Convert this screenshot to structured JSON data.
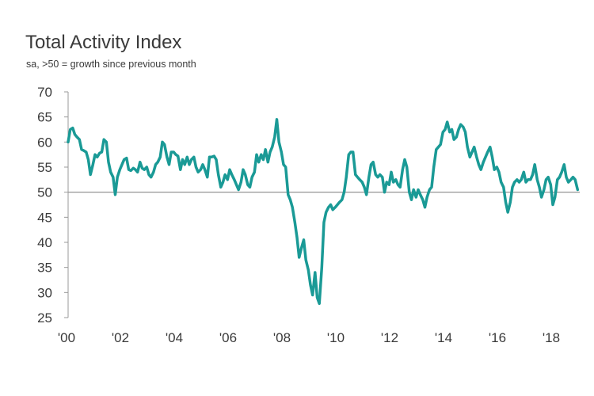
{
  "chart_data": {
    "type": "line",
    "title": "Total Activity Index",
    "subtitle": "sa, >50 = growth since previous month",
    "xlabel": "",
    "ylabel": "",
    "xlim": [
      2000.0,
      2019.0
    ],
    "ylim": [
      25,
      70
    ],
    "yticks": [
      25,
      30,
      35,
      40,
      45,
      50,
      55,
      60,
      65,
      70
    ],
    "xtick_labels": [
      "'00",
      "'02",
      "'04",
      "'06",
      "'08",
      "'10",
      "'12",
      "'14",
      "'16",
      "'18"
    ],
    "xtick_positions": [
      2000,
      2002,
      2004,
      2006,
      2008,
      2010,
      2012,
      2014,
      2016,
      2018
    ],
    "reference_line": 50,
    "line_color": "#1a9a96",
    "reference_color": "#888888",
    "series": [
      {
        "x": [
          2000.0,
          2000.08,
          2000.17,
          2000.25,
          2000.33,
          2000.42,
          2000.5,
          2000.58,
          2000.67,
          2000.75,
          2000.83,
          2000.92,
          2001.0,
          2001.08,
          2001.17,
          2001.25,
          2001.33,
          2001.42,
          2001.5,
          2001.58,
          2001.67,
          2001.75,
          2001.83,
          2001.92,
          2002.0,
          2002.08,
          2002.17,
          2002.25,
          2002.33,
          2002.42,
          2002.5,
          2002.58,
          2002.67,
          2002.75,
          2002.83,
          2002.92,
          2003.0,
          2003.08,
          2003.17,
          2003.25,
          2003.33,
          2003.42,
          2003.5,
          2003.58,
          2003.67,
          2003.75,
          2003.83,
          2003.92,
          2004.0,
          2004.08,
          2004.17,
          2004.25,
          2004.33,
          2004.42,
          2004.5,
          2004.58,
          2004.67,
          2004.75,
          2004.83,
          2004.92,
          2005.0,
          2005.08,
          2005.17,
          2005.25,
          2005.33,
          2005.42,
          2005.5,
          2005.58,
          2005.67,
          2005.75,
          2005.83,
          2005.92,
          2006.0,
          2006.08,
          2006.17,
          2006.25,
          2006.33,
          2006.42,
          2006.5,
          2006.58,
          2006.67,
          2006.75,
          2006.83,
          2006.92,
          2007.0,
          2007.08,
          2007.17,
          2007.25,
          2007.33,
          2007.42,
          2007.5,
          2007.58,
          2007.67,
          2007.75,
          2007.83,
          2007.92,
          2008.0,
          2008.08,
          2008.17,
          2008.25,
          2008.33,
          2008.42,
          2008.5,
          2008.58,
          2008.67,
          2008.75,
          2008.83,
          2008.92,
          2009.0,
          2009.08,
          2009.17,
          2009.25,
          2009.33,
          2009.42,
          2009.5,
          2009.58,
          2009.67,
          2009.75,
          2009.83,
          2009.92,
          2010.0,
          2010.08,
          2010.17,
          2010.25,
          2010.33,
          2010.42,
          2010.5,
          2010.58,
          2010.67,
          2010.75,
          2010.83,
          2010.92,
          2011.0,
          2011.08,
          2011.17,
          2011.25,
          2011.33,
          2011.42,
          2011.5,
          2011.58,
          2011.67,
          2011.75,
          2011.83,
          2011.92,
          2012.0,
          2012.08,
          2012.17,
          2012.25,
          2012.33,
          2012.42,
          2012.5,
          2012.58,
          2012.67,
          2012.75,
          2012.83,
          2012.92,
          2013.0,
          2013.08,
          2013.17,
          2013.25,
          2013.33,
          2013.42,
          2013.5,
          2013.58,
          2013.67,
          2013.75,
          2013.83,
          2013.92,
          2014.0,
          2014.08,
          2014.17,
          2014.25,
          2014.33,
          2014.42,
          2014.5,
          2014.58,
          2014.67,
          2014.75,
          2014.83,
          2014.92,
          2015.0,
          2015.08,
          2015.17,
          2015.25,
          2015.33,
          2015.42,
          2015.5,
          2015.58,
          2015.67,
          2015.75,
          2015.83,
          2015.92,
          2016.0,
          2016.08,
          2016.17,
          2016.25,
          2016.33,
          2016.42,
          2016.5,
          2016.58,
          2016.67,
          2016.75,
          2016.83,
          2016.92,
          2017.0,
          2017.08,
          2017.17,
          2017.25,
          2017.33,
          2017.42,
          2017.5,
          2017.58,
          2017.67,
          2017.75,
          2017.83,
          2017.92,
          2018.0,
          2018.08,
          2018.17,
          2018.25,
          2018.33,
          2018.42,
          2018.5,
          2018.58,
          2018.67,
          2018.75,
          2018.83,
          2018.92
        ],
        "values": [
          60.0,
          62.5,
          62.8,
          61.5,
          61.0,
          60.5,
          58.5,
          58.3,
          58.0,
          56.5,
          53.5,
          55.5,
          57.5,
          57.0,
          57.8,
          58.0,
          60.5,
          60.0,
          56.0,
          54.0,
          53.0,
          49.5,
          53.0,
          54.5,
          55.5,
          56.5,
          56.8,
          54.5,
          54.3,
          54.8,
          54.5,
          54.0,
          56.0,
          54.8,
          54.5,
          55.0,
          53.5,
          53.0,
          54.0,
          55.5,
          56.0,
          57.0,
          60.0,
          59.5,
          57.0,
          55.5,
          58.0,
          58.0,
          57.5,
          57.2,
          54.5,
          56.5,
          55.5,
          57.0,
          55.5,
          56.5,
          57.0,
          55.0,
          54.0,
          54.5,
          55.5,
          54.5,
          53.0,
          57.0,
          57.0,
          57.2,
          56.5,
          53.5,
          51.0,
          52.0,
          53.5,
          52.5,
          54.5,
          53.5,
          52.5,
          51.5,
          50.5,
          52.0,
          54.5,
          53.5,
          51.5,
          51.0,
          53.0,
          54.0,
          57.5,
          56.0,
          57.5,
          56.5,
          58.5,
          56.0,
          58.0,
          59.0,
          61.0,
          64.5,
          60.0,
          58.0,
          55.5,
          55.0,
          49.5,
          48.5,
          47.0,
          44.0,
          41.0,
          37.0,
          39.0,
          40.5,
          36.5,
          34.5,
          31.5,
          29.5,
          34.0,
          29.0,
          27.8,
          35.0,
          44.0,
          46.0,
          47.0,
          47.5,
          46.5,
          47.0,
          47.5,
          48.0,
          48.5,
          50.0,
          53.0,
          57.5,
          58.0,
          58.0,
          53.5,
          53.0,
          52.5,
          52.0,
          51.0,
          49.5,
          53.0,
          55.5,
          56.0,
          53.5,
          53.0,
          53.5,
          53.0,
          50.0,
          52.0,
          51.5,
          54.0,
          52.0,
          52.5,
          51.5,
          51.0,
          54.5,
          56.5,
          55.0,
          50.0,
          48.5,
          50.5,
          49.0,
          50.5,
          49.5,
          48.5,
          47.0,
          49.0,
          50.5,
          51.0,
          55.0,
          58.5,
          59.0,
          59.5,
          62.0,
          62.5,
          64.0,
          62.0,
          62.5,
          60.5,
          61.0,
          62.5,
          63.5,
          63.0,
          62.0,
          59.0,
          57.0,
          58.0,
          59.0,
          57.0,
          55.5,
          54.5,
          56.0,
          57.0,
          58.0,
          59.0,
          57.0,
          54.5,
          55.0,
          54.0,
          52.0,
          51.0,
          48.0,
          46.0,
          48.0,
          51.0,
          52.0,
          52.5,
          52.0,
          52.5,
          54.0,
          52.0,
          52.5,
          52.5,
          53.5,
          55.5,
          52.5,
          51.0,
          49.0,
          50.5,
          52.5,
          53.0,
          51.5,
          47.5,
          49.0,
          52.5,
          53.0,
          54.0,
          55.5,
          53.0,
          52.0,
          52.5,
          53.0,
          52.5,
          50.5
        ]
      }
    ]
  }
}
